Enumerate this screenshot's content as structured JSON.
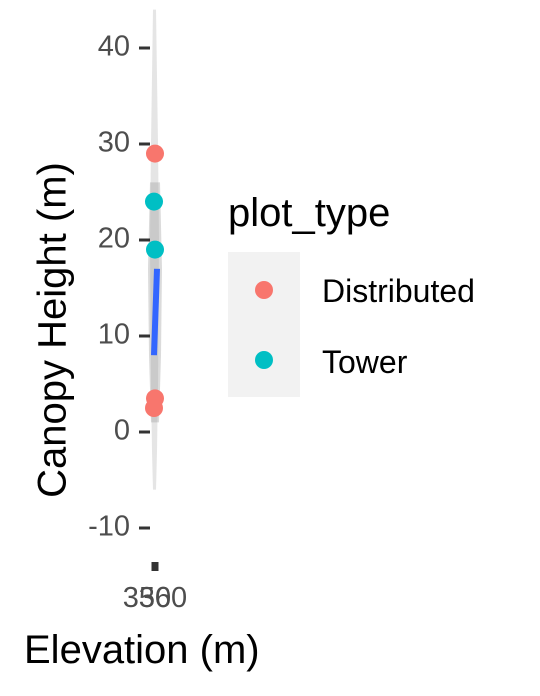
{
  "chart_data": {
    "type": "scatter",
    "xlabel": "Elevation (m)",
    "ylabel": "Canopy Height (m)",
    "ylim": [
      -10,
      40
    ],
    "y_ticks": [
      "-10",
      "0",
      "10",
      "20",
      "30",
      "40"
    ],
    "x_tick_labels": [
      "350",
      "360"
    ],
    "grid": false,
    "legend": {
      "title": "plot_type",
      "placement": "right",
      "entries": [
        {
          "label": "Distributed",
          "color": "#F8766D"
        },
        {
          "label": "Tower",
          "color": "#00BFC4"
        }
      ]
    },
    "series": [
      {
        "name": "Distributed",
        "color": "#F8766D",
        "y": [
          29,
          3.5,
          2.5
        ]
      },
      {
        "name": "Tower",
        "color": "#00BFC4",
        "y": [
          24,
          19
        ]
      }
    ],
    "trend_line": {
      "color": "#3366FF",
      "y_start": 8,
      "y_end": 17
    },
    "confidence_band": {
      "color": "#999999"
    }
  }
}
